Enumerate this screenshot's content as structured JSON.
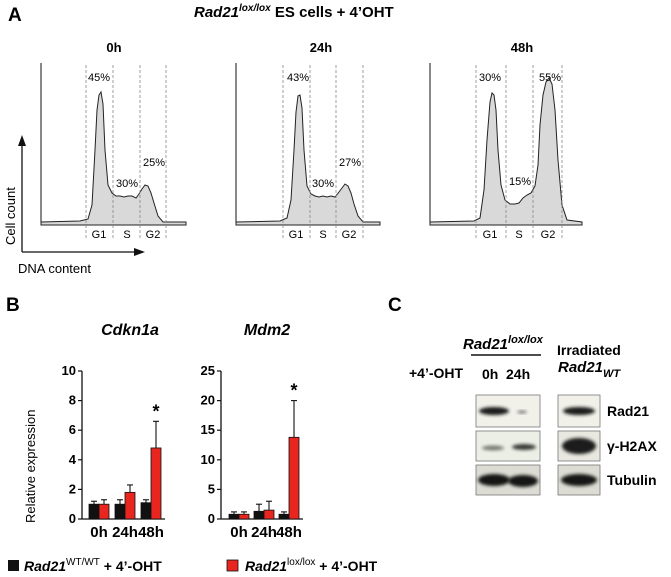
{
  "panel_a": {
    "letter": "A",
    "title_gene": "Rad21",
    "title_sup": "lox/lox",
    "title_rest": " ES cells + 4’OHT",
    "axis_y": "Cell count",
    "axis_x": "DNA content",
    "histograms": [
      {
        "time": "0h",
        "pct": {
          "g1": "45%",
          "s": "30%",
          "g2": "25%"
        },
        "phases": [
          "G1",
          "S",
          "G2"
        ]
      },
      {
        "time": "24h",
        "pct": {
          "g1": "43%",
          "s": "30%",
          "g2": "27%"
        },
        "phases": [
          "G1",
          "S",
          "G2"
        ]
      },
      {
        "time": "48h",
        "pct": {
          "g1": "30%",
          "s": "15%",
          "g2": "55%"
        },
        "phases": [
          "G1",
          "S",
          "G2"
        ]
      }
    ]
  },
  "panel_b": {
    "letter": "B",
    "ylabel": "Relative expression",
    "legend": [
      {
        "gene": "Rad21",
        "sup": "WT/WT",
        "rest": " + 4’-OHT",
        "color": "#111111"
      },
      {
        "gene": "Rad21",
        "sup": "lox/lox",
        "rest": " + 4’-OHT",
        "color": "#e8251f"
      }
    ]
  },
  "chart_data": [
    {
      "type": "bar",
      "title": "Cdkn1a",
      "categories": [
        "0h",
        "24h",
        "48h"
      ],
      "ylim": [
        0,
        10
      ],
      "yticks": [
        "0",
        "2",
        "4",
        "6",
        "8",
        "10"
      ],
      "ylabel": "Relative expression",
      "series": [
        {
          "values": [
            1.0,
            1.0,
            1.1
          ],
          "errors": [
            0.2,
            0.3,
            0.2
          ],
          "color": "#111111"
        },
        {
          "values": [
            1.0,
            1.8,
            4.8
          ],
          "errors": [
            0.3,
            0.5,
            1.8
          ],
          "color": "#e8251f"
        }
      ],
      "annotations": [
        "*"
      ]
    },
    {
      "type": "bar",
      "title": "Mdm2",
      "categories": [
        "0h",
        "24h",
        "48h"
      ],
      "ylim": [
        0,
        25
      ],
      "yticks": [
        "0",
        "5",
        "10",
        "15",
        "20",
        "25"
      ],
      "series": [
        {
          "values": [
            0.8,
            1.3,
            0.8
          ],
          "errors": [
            0.4,
            1.2,
            0.4
          ],
          "color": "#111111"
        },
        {
          "values": [
            0.8,
            1.5,
            13.8
          ],
          "errors": [
            0.4,
            1.5,
            6.2
          ],
          "color": "#e8251f"
        }
      ],
      "annotations": [
        "*"
      ]
    }
  ],
  "panel_c": {
    "letter": "C",
    "header_gene": "Rad21",
    "header_sup": "lox/lox",
    "treatment": "+4’-OHT",
    "lanes": [
      "0h",
      "24h"
    ],
    "irr_label": "Irradiated",
    "irr_gene": "Rad21",
    "irr_sup": "WT",
    "rows": [
      "Rad21",
      "γ-H2AX",
      "Tubulin"
    ]
  }
}
